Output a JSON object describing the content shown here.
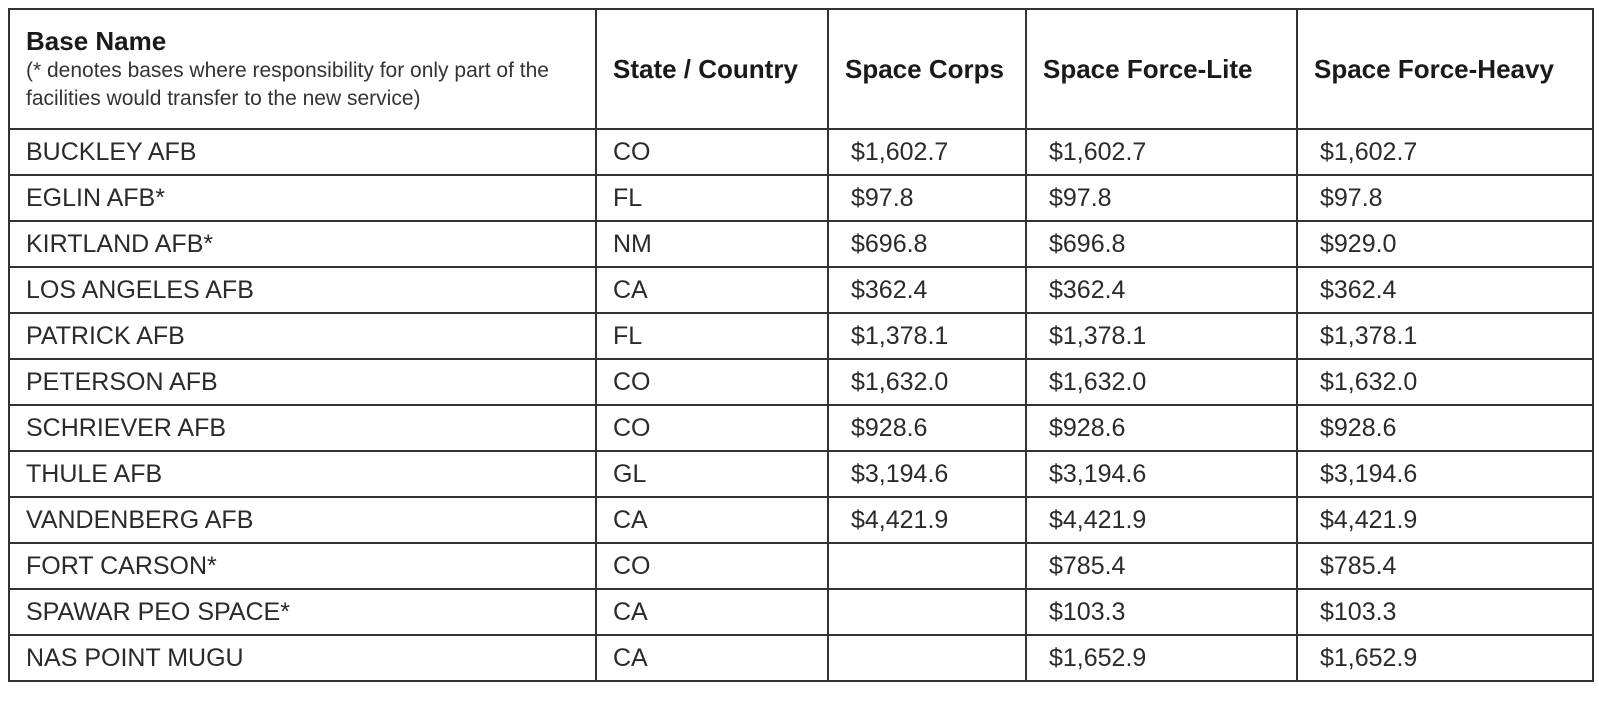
{
  "header": {
    "base_name": "Base Name",
    "base_name_note": "(* denotes bases where responsibility for only part of the facilities would transfer to the new service)",
    "state_country": "State / Country",
    "space_corps": "Space Corps",
    "space_force_lite": "Space Force-Lite",
    "space_force_heavy": "Space Force-Heavy"
  },
  "rows": [
    {
      "base": "BUCKLEY AFB",
      "state": "CO",
      "corps": "$1,602.7",
      "lite": "$1,602.7",
      "heavy": "$1,602.7"
    },
    {
      "base": "EGLIN AFB*",
      "state": "FL",
      "corps": "$97.8",
      "lite": "$97.8",
      "heavy": "$97.8"
    },
    {
      "base": "KIRTLAND AFB*",
      "state": "NM",
      "corps": "$696.8",
      "lite": "$696.8",
      "heavy": "$929.0"
    },
    {
      "base": "LOS ANGELES AFB",
      "state": "CA",
      "corps": "$362.4",
      "lite": "$362.4",
      "heavy": "$362.4"
    },
    {
      "base": "PATRICK AFB",
      "state": "FL",
      "corps": "$1,378.1",
      "lite": "$1,378.1",
      "heavy": "$1,378.1"
    },
    {
      "base": "PETERSON AFB",
      "state": "CO",
      "corps": "$1,632.0",
      "lite": "$1,632.0",
      "heavy": "$1,632.0"
    },
    {
      "base": "SCHRIEVER AFB",
      "state": "CO",
      "corps": "$928.6",
      "lite": "$928.6",
      "heavy": "$928.6"
    },
    {
      "base": "THULE AFB",
      "state": "GL",
      "corps": "$3,194.6",
      "lite": "$3,194.6",
      "heavy": "$3,194.6"
    },
    {
      "base": "VANDENBERG AFB",
      "state": "CA",
      "corps": "$4,421.9",
      "lite": "$4,421.9",
      "heavy": "$4,421.9"
    },
    {
      "base": "FORT CARSON*",
      "state": "CO",
      "corps": "",
      "lite": "$785.4",
      "heavy": "$785.4"
    },
    {
      "base": "SPAWAR PEO SPACE*",
      "state": "CA",
      "corps": "",
      "lite": "$103.3",
      "heavy": "$103.3"
    },
    {
      "base": "NAS POINT MUGU",
      "state": "CA",
      "corps": "",
      "lite": "$1,652.9",
      "heavy": "$1,652.9"
    }
  ]
}
